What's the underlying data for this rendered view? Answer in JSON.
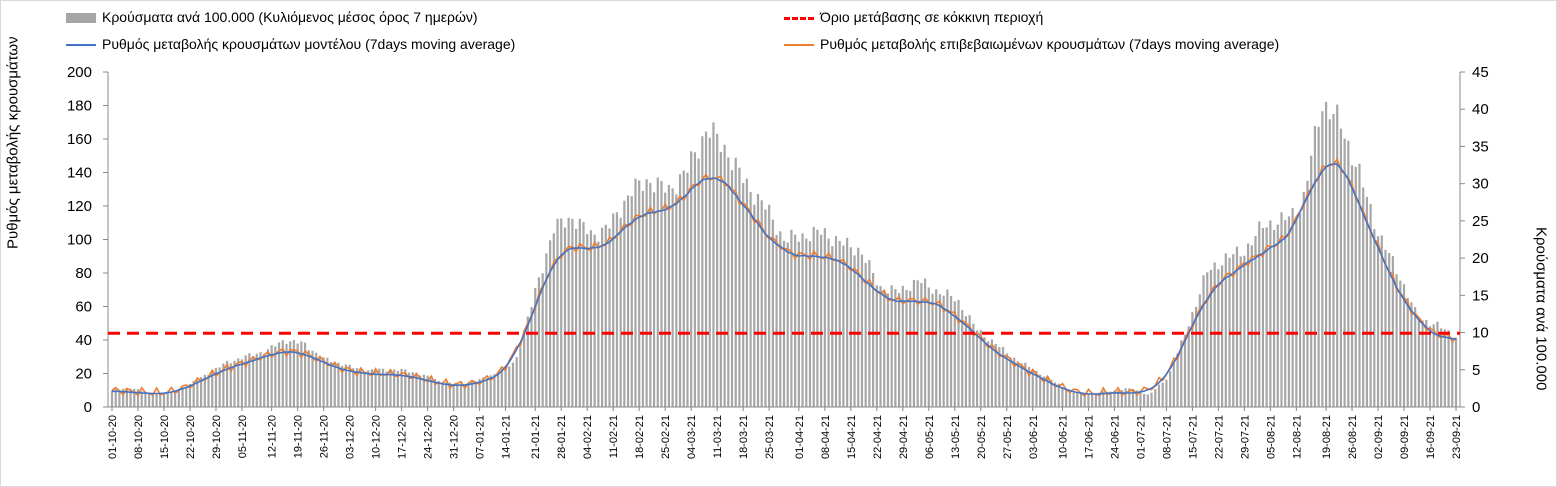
{
  "chart_data": {
    "type": "bar+line",
    "legend": [
      {
        "key": "bars",
        "label": "Κρούσματα ανά 100.000 (Κυλιόμενος μέσος όρος 7 ημερών)",
        "color": "#a6a6a6"
      },
      {
        "key": "threshold",
        "label": "Όριο μετάβασης σε κόκκινη περιοχή",
        "color": "#ff0000"
      },
      {
        "key": "model",
        "label": "Ρυθμός μεταβολής κρουσμάτων μοντέλου (7days moving average)",
        "color": "#4472c4"
      },
      {
        "key": "confirmed",
        "label": "Ρυθμός μεταβολής επιβεβαιωμένων κρουσμάτων (7days moving average)",
        "color": "#ed7d31"
      }
    ],
    "ylabel_left": "Ρυθμός μεταβολής κρουσμάτων",
    "ylabel_right": "Κρούσματα ανά 100.000",
    "ylim_left": [
      0,
      200
    ],
    "ylim_right": [
      0,
      45
    ],
    "yticks_left": [
      "0",
      "20",
      "40",
      "60",
      "80",
      "100",
      "120",
      "140",
      "160",
      "180",
      "200"
    ],
    "yticks_right": [
      "0",
      "5",
      "10",
      "15",
      "20",
      "25",
      "30",
      "35",
      "40",
      "45"
    ],
    "threshold_left": 44,
    "x_tick_labels": [
      "01-10-20",
      "08-10-20",
      "15-10-20",
      "22-10-20",
      "29-10-20",
      "05-11-20",
      "12-11-20",
      "19-11-20",
      "26-11-20",
      "03-12-20",
      "10-12-20",
      "17-12-20",
      "24-12-20",
      "31-12-20",
      "07-01-21",
      "14-01-21",
      "21-01-21",
      "28-01-21",
      "04-02-21",
      "11-02-21",
      "18-02-21",
      "25-02-21",
      "04-03-21",
      "11-03-21",
      "18-03-21",
      "25-03-21",
      "01-04-21",
      "08-04-21",
      "15-04-21",
      "22-04-21",
      "29-04-21",
      "06-05-21",
      "13-05-21",
      "20-05-21",
      "27-05-21",
      "03-06-21",
      "10-06-21",
      "17-06-21",
      "24-06-21",
      "01-07-21",
      "08-07-21",
      "15-07-21",
      "22-07-21",
      "29-07-21",
      "05-08-21",
      "12-08-21",
      "19-08-21",
      "26-08-21",
      "02-09-21",
      "09-09-21",
      "16-09-21",
      "23-09-21"
    ],
    "weekly_cases_per_100k": [
      2.2,
      2.6,
      1.8,
      1.9,
      3.0,
      4.5,
      6.0,
      6.8,
      7.5,
      9.0,
      8.5,
      6.5,
      5.8,
      4.9,
      5.0,
      5.0,
      4.5,
      3.5,
      3.0,
      3.5,
      4.5,
      6.0,
      15.0,
      24.0,
      25.5,
      23.0,
      24.5,
      29.0,
      30.5,
      29.0,
      32.0,
      37.5,
      34.5,
      30.0,
      27.0,
      22.5,
      23.0,
      23.5,
      22.0,
      21.0,
      16.0,
      15.5,
      17.0,
      15.5,
      14.5,
      10.5,
      8.5,
      6.5,
      5.0,
      3.5,
      2.0,
      1.8,
      2.1,
      2.5,
      1.6,
      4.0,
      10.5,
      18.0,
      20.0,
      21.0,
      24.5,
      25.0,
      27.0,
      41.0,
      38.0,
      31.0,
      23.0,
      18.0,
      12.0,
      11.0,
      9.5
    ]
  }
}
